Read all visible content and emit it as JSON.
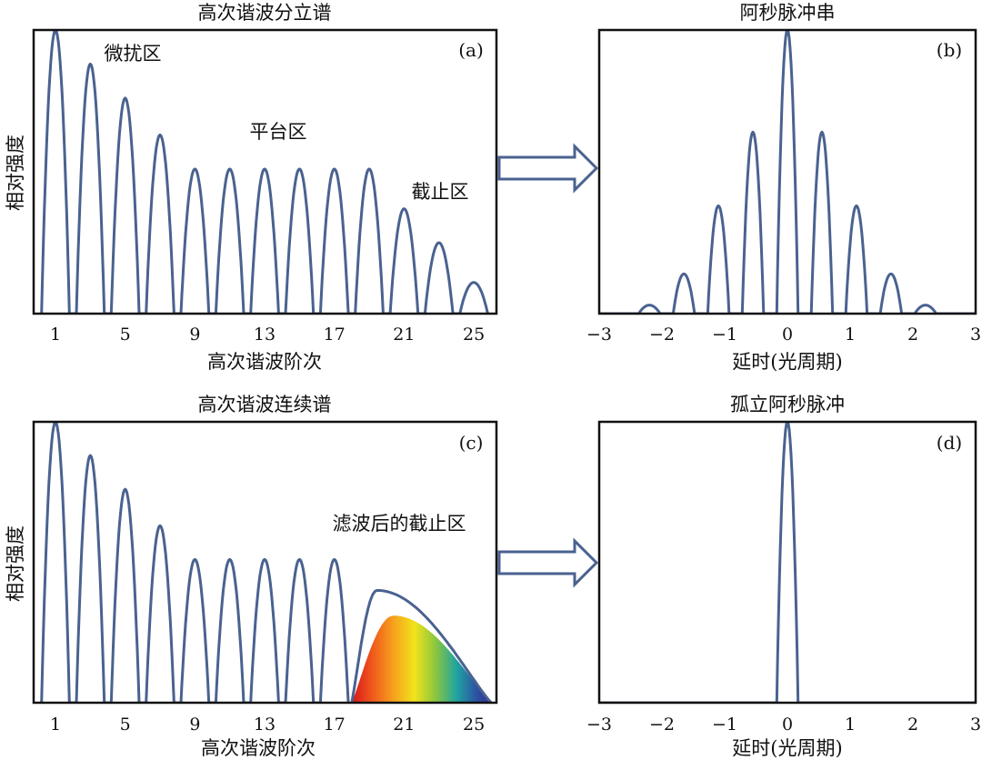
{
  "chart_data": [
    {
      "id": "a",
      "type": "line",
      "panel_label": "(a)",
      "title": "高次谐波分立谱",
      "xlabel": "高次谐波阶次",
      "ylabel": "相对强度",
      "xticks": [
        "1",
        "5",
        "9",
        "13",
        "17",
        "21",
        "25"
      ],
      "harmonic_orders": [
        1,
        3,
        5,
        7,
        9,
        11,
        13,
        15,
        17,
        19,
        21,
        23,
        25
      ],
      "relative_intensity": [
        1.0,
        0.88,
        0.76,
        0.63,
        0.51,
        0.51,
        0.51,
        0.51,
        0.51,
        0.51,
        0.37,
        0.25,
        0.11
      ],
      "annotations": [
        "微扰区",
        "平台区",
        "截止区"
      ]
    },
    {
      "id": "b",
      "type": "line",
      "panel_label": "(b)",
      "title": "阿秒脉冲串",
      "xlabel": "延时(光周期)",
      "xticks": [
        "−3",
        "−2",
        "−1",
        "0",
        "1",
        "2",
        "3"
      ],
      "xlim": [
        -3,
        3
      ],
      "pulse_delays": [
        -2.2,
        -1.65,
        -1.1,
        -0.55,
        0,
        0.55,
        1.1,
        1.65,
        2.2
      ],
      "relative_intensity": [
        0.03,
        0.14,
        0.38,
        0.64,
        1.0,
        0.64,
        0.38,
        0.14,
        0.03
      ]
    },
    {
      "id": "c",
      "type": "line",
      "panel_label": "(c)",
      "title": "高次谐波连续谱",
      "xlabel": "高次谐波阶次",
      "ylabel": "相对强度",
      "xticks": [
        "1",
        "5",
        "9",
        "13",
        "17",
        "21",
        "25"
      ],
      "harmonic_orders": [
        1,
        3,
        5,
        7,
        9,
        11,
        13,
        15,
        17
      ],
      "relative_intensity": [
        1.0,
        0.88,
        0.76,
        0.63,
        0.51,
        0.51,
        0.51,
        0.51,
        0.51
      ],
      "continuum_range": [
        18,
        26
      ],
      "annotations": [
        "滤波后的截止区"
      ]
    },
    {
      "id": "d",
      "type": "line",
      "panel_label": "(d)",
      "title": "孤立阿秒脉冲",
      "xlabel": "延时(光周期)",
      "xticks": [
        "−3",
        "−2",
        "−1",
        "0",
        "1",
        "2",
        "3"
      ],
      "xlim": [
        -3,
        3
      ],
      "pulse_delays": [
        0
      ],
      "relative_intensity": [
        1.0
      ]
    }
  ],
  "colors": {
    "curve": "#4a6290",
    "arrow": "#4a6290",
    "frame": "#111111"
  }
}
